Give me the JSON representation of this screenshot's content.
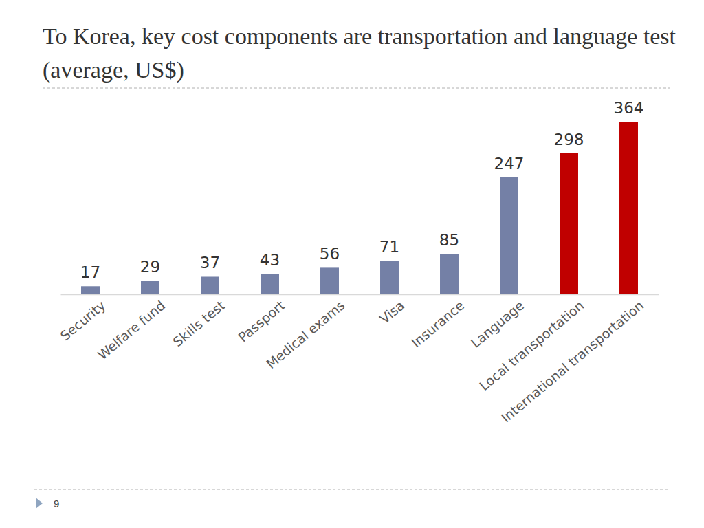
{
  "chart_data": {
    "type": "bar",
    "title": "To Korea, key cost components are transportation and language test (average, US$)",
    "categories": [
      "Security",
      "Welfare fund",
      "Skills test",
      "Passport",
      "Medical exams",
      "Visa",
      "Insurance",
      "Language",
      "Local transportation",
      "International transportation"
    ],
    "values": [
      17,
      29,
      37,
      43,
      56,
      71,
      85,
      247,
      298,
      364
    ],
    "colors": [
      "#7480a6",
      "#7480a6",
      "#7480a6",
      "#7480a6",
      "#7480a6",
      "#7480a6",
      "#7480a6",
      "#7480a6",
      "#c00000",
      "#c00000"
    ],
    "data_labels": true,
    "tick_labels": "x",
    "grid": false
  },
  "page": {
    "number": "9"
  }
}
